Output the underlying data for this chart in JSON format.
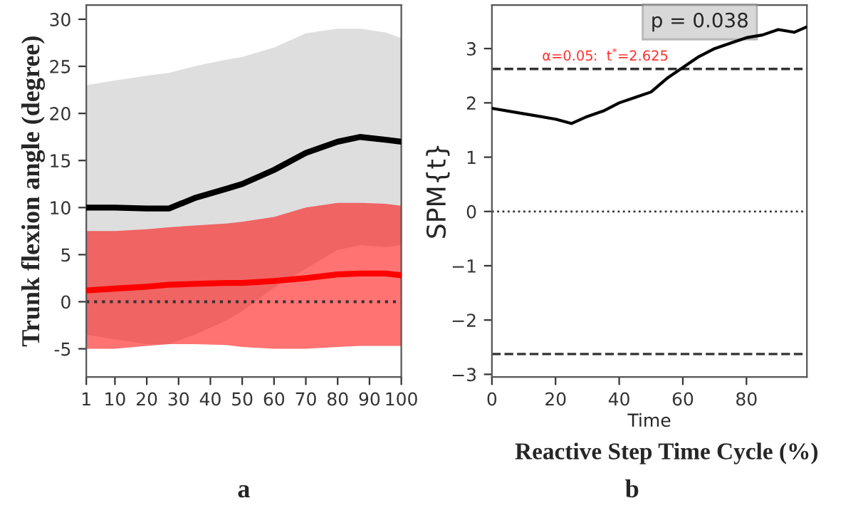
{
  "chart_data": [
    {
      "type": "line",
      "ylabel": "Trunk flexion angle (degree)",
      "x": [
        1,
        10,
        20,
        27,
        35,
        45,
        50,
        60,
        70,
        80,
        87,
        95,
        100
      ],
      "series": [
        {
          "color": "#000000",
          "values": [
            10,
            10,
            9.9,
            9.9,
            11,
            12,
            12.5,
            14,
            15.8,
            17,
            17.5,
            17.2,
            17
          ],
          "lower": [
            -3.5,
            -4,
            -4.5,
            -4.5,
            -3.5,
            -2,
            -1,
            1.5,
            3.5,
            5.5,
            6,
            5.8,
            6
          ],
          "upper": [
            23,
            23.5,
            24,
            24.3,
            25,
            25.7,
            26,
            27,
            28.5,
            29,
            29,
            28.6,
            28
          ]
        },
        {
          "color": "#ff0000",
          "values": [
            1.2,
            1.4,
            1.6,
            1.8,
            1.9,
            2.0,
            2.0,
            2.2,
            2.5,
            2.9,
            3.0,
            3.0,
            2.8
          ],
          "lower": [
            -5,
            -5,
            -4.7,
            -4.5,
            -4.5,
            -4.6,
            -4.8,
            -5,
            -5,
            -4.8,
            -4.7,
            -4.7,
            -4.7
          ],
          "upper": [
            7.5,
            7.5,
            7.7,
            7.9,
            8.1,
            8.3,
            8.5,
            9,
            10,
            10.5,
            10.5,
            10.4,
            10.2
          ]
        }
      ],
      "xlim": [
        1,
        100
      ],
      "xticks": [
        1,
        10,
        20,
        30,
        40,
        50,
        60,
        70,
        80,
        90,
        100
      ],
      "ylim": [
        -8,
        31.5
      ],
      "yticks": [
        -5,
        0,
        5,
        10,
        15,
        20,
        25,
        30
      ],
      "ref_lines": [
        {
          "axis": "y",
          "value": 0,
          "line_style": "dotted"
        }
      ],
      "grid": false,
      "legend": false,
      "annotations": [
        "a"
      ]
    },
    {
      "type": "line",
      "xlabel": "Time",
      "ylabel": "SPM{t}",
      "x": [
        0,
        10,
        20,
        25,
        30,
        35,
        40,
        45,
        50,
        55,
        60,
        65,
        70,
        75,
        80,
        85,
        90,
        95,
        99
      ],
      "series": [
        {
          "color": "#000000",
          "values": [
            1.9,
            1.8,
            1.7,
            1.62,
            1.75,
            1.85,
            2.0,
            2.1,
            2.2,
            2.45,
            2.65,
            2.85,
            3.0,
            3.1,
            3.2,
            3.25,
            3.35,
            3.3,
            3.4
          ]
        }
      ],
      "xlim": [
        0,
        99
      ],
      "xticks": [
        0,
        20,
        40,
        60,
        80
      ],
      "ylim": [
        -3.05,
        3.8
      ],
      "yticks": [
        {
          "value": -3,
          "label": "−3"
        },
        {
          "value": -2,
          "label": "−2"
        },
        {
          "value": -1,
          "label": "−1"
        },
        0,
        1,
        2,
        3
      ],
      "ref_lines": [
        {
          "axis": "y",
          "value": 2.625,
          "line_style": "dashed"
        },
        {
          "axis": "y",
          "value": -2.625,
          "line_style": "dashed"
        },
        {
          "axis": "y",
          "value": 0,
          "line_style": "dotted"
        }
      ],
      "grid": false,
      "legend": false,
      "annotations": [
        "p = 0.038",
        "α=0.05:  t$^{*}$=2.625",
        "Reactive Step Time Cycle (%)",
        "b"
      ]
    }
  ]
}
